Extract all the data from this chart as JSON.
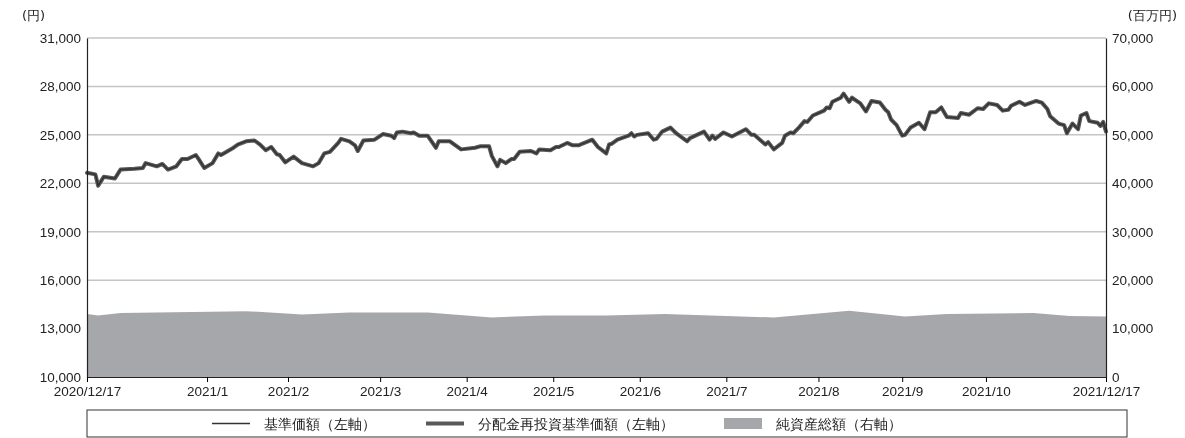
{
  "chart_data": {
    "type": "line",
    "ylabel": "(円)",
    "y2label": "(百万円)",
    "xlim": [
      "2020-12-17",
      "2021-12-17"
    ],
    "xticks": [
      {
        "value": "2020-12-17",
        "label": "2020/12/17"
      },
      {
        "value": "2021-01-29",
        "label": "2021/1"
      },
      {
        "value": "2021-02-27",
        "label": "2021/2"
      },
      {
        "value": "2021-04-01",
        "label": "2021/3"
      },
      {
        "value": "2021-05-02",
        "label": "2021/4"
      },
      {
        "value": "2021-06-02",
        "label": "2021/5"
      },
      {
        "value": "2021-07-03",
        "label": "2021/6"
      },
      {
        "value": "2021-08-03",
        "label": "2021/7"
      },
      {
        "value": "2021-09-05",
        "label": "2021/8"
      },
      {
        "value": "2021-10-05",
        "label": "2021/9"
      },
      {
        "value": "2021-11-04",
        "label": "2021/10"
      },
      {
        "value": "2021-12-17",
        "label": "2021/12/17"
      }
    ],
    "ylim": [
      10000,
      31000
    ],
    "yticks": [
      {
        "value": 10000,
        "label": "10,000"
      },
      {
        "value": 13000,
        "label": "13,000"
      },
      {
        "value": 16000,
        "label": "16,000"
      },
      {
        "value": 19000,
        "label": "19,000"
      },
      {
        "value": 22000,
        "label": "22,000"
      },
      {
        "value": 25000,
        "label": "25,000"
      },
      {
        "value": 28000,
        "label": "28,000"
      },
      {
        "value": 31000,
        "label": "31,000"
      }
    ],
    "y2lim": [
      0,
      70000
    ],
    "y2ticks": [
      0,
      {
        "value": 10000,
        "label": "10,000"
      },
      {
        "value": 20000,
        "label": "20,000"
      },
      {
        "value": 30000,
        "label": "30,000"
      },
      {
        "value": 40000,
        "label": "40,000"
      },
      {
        "value": 50000,
        "label": "50,000"
      },
      {
        "value": 60000,
        "label": "60,000"
      },
      {
        "value": 70000,
        "label": "70,000"
      }
    ],
    "grid": "y",
    "legend": "bottom",
    "x": [
      "2020-12-17",
      "2020-12-20",
      "2020-12-21",
      "2020-12-23",
      "2020-12-27",
      "2020-12-29",
      "2021-01-03",
      "2021-01-06",
      "2021-01-07",
      "2021-01-11",
      "2021-01-13",
      "2021-01-15",
      "2021-01-18",
      "2021-01-20",
      "2021-01-22",
      "2021-01-25",
      "2021-01-26",
      "2021-01-28",
      "2021-01-31",
      "2021-02-02",
      "2021-02-03",
      "2021-02-05",
      "2021-02-07",
      "2021-02-09",
      "2021-02-12",
      "2021-02-15",
      "2021-02-17",
      "2021-02-19",
      "2021-02-21",
      "2021-02-23",
      "2021-02-24",
      "2021-02-26",
      "2021-03-01",
      "2021-03-04",
      "2021-03-08",
      "2021-03-10",
      "2021-03-12",
      "2021-03-14",
      "2021-03-17",
      "2021-03-18",
      "2021-03-21",
      "2021-03-23",
      "2021-03-24",
      "2021-03-26",
      "2021-03-30",
      "2021-04-02",
      "2021-04-05",
      "2021-04-06",
      "2021-04-07",
      "2021-04-09",
      "2021-04-12",
      "2021-04-13",
      "2021-04-15",
      "2021-04-18",
      "2021-04-21",
      "2021-04-22",
      "2021-04-26",
      "2021-04-30",
      "2021-05-05",
      "2021-05-07",
      "2021-05-10",
      "2021-05-11",
      "2021-05-13",
      "2021-05-14",
      "2021-05-16",
      "2021-05-18",
      "2021-05-19",
      "2021-05-21",
      "2021-05-25",
      "2021-05-27",
      "2021-05-28",
      "2021-06-01",
      "2021-06-03",
      "2021-06-04",
      "2021-06-07",
      "2021-06-09",
      "2021-06-11",
      "2021-06-16",
      "2021-06-18",
      "2021-06-21",
      "2021-06-22",
      "2021-06-23",
      "2021-06-25",
      "2021-06-29",
      "2021-06-30",
      "2021-07-01",
      "2021-07-02",
      "2021-07-06",
      "2021-07-08",
      "2021-07-09",
      "2021-07-11",
      "2021-07-14",
      "2021-07-16",
      "2021-07-20",
      "2021-07-21",
      "2021-07-26",
      "2021-07-28",
      "2021-07-29",
      "2021-07-30",
      "2021-08-02",
      "2021-08-05",
      "2021-08-10",
      "2021-08-12",
      "2021-08-13",
      "2021-08-17",
      "2021-08-18",
      "2021-08-20",
      "2021-08-23",
      "2021-08-24",
      "2021-08-26",
      "2021-08-27",
      "2021-08-29",
      "2021-08-31",
      "2021-09-01",
      "2021-09-03",
      "2021-09-07",
      "2021-09-08",
      "2021-09-09",
      "2021-09-10",
      "2021-09-13",
      "2021-09-14",
      "2021-09-16",
      "2021-09-17",
      "2021-09-20",
      "2021-09-22",
      "2021-09-24",
      "2021-09-27",
      "2021-09-29",
      "2021-09-30",
      "2021-10-01",
      "2021-10-03",
      "2021-10-05",
      "2021-10-06",
      "2021-10-08",
      "2021-10-11",
      "2021-10-13",
      "2021-10-15",
      "2021-10-17",
      "2021-10-19",
      "2021-10-21",
      "2021-10-25",
      "2021-10-26",
      "2021-10-29",
      "2021-11-01",
      "2021-11-03",
      "2021-11-05",
      "2021-11-08",
      "2021-11-10",
      "2021-11-12",
      "2021-11-13",
      "2021-11-16",
      "2021-11-18",
      "2021-11-22",
      "2021-11-24",
      "2021-11-26",
      "2021-11-27",
      "2021-11-30",
      "2021-12-02",
      "2021-12-03",
      "2021-12-05",
      "2021-12-07",
      "2021-12-08",
      "2021-12-10",
      "2021-12-11",
      "2021-12-14",
      "2021-12-15",
      "2021-12-16",
      "2021-12-17"
    ],
    "series": [
      {
        "name": "基準価額（左軸）",
        "color": "#333333",
        "values": [
          22650,
          22550,
          21850,
          22400,
          22300,
          22850,
          22900,
          22950,
          23250,
          23050,
          23200,
          22850,
          23050,
          23500,
          23500,
          23750,
          23500,
          22950,
          23250,
          23850,
          23750,
          23950,
          24150,
          24400,
          24600,
          24650,
          24400,
          24050,
          24250,
          23800,
          23750,
          23300,
          23650,
          23250,
          23050,
          23250,
          23850,
          23950,
          24500,
          24750,
          24600,
          24350,
          24000,
          24650,
          24700,
          25050,
          24950,
          24800,
          25150,
          25200,
          25100,
          25150,
          24950,
          24950,
          24200,
          24600,
          24600,
          24100,
          24200,
          24300,
          24300,
          23700,
          23050,
          23450,
          23250,
          23500,
          23500,
          23950,
          24000,
          23850,
          24100,
          24050,
          24250,
          24250,
          24500,
          24350,
          24350,
          24700,
          24250,
          23850,
          24400,
          24450,
          24700,
          24950,
          25100,
          24900,
          25000,
          25100,
          24700,
          24750,
          25200,
          25450,
          25100,
          24600,
          24800,
          25200,
          24700,
          24950,
          24750,
          25150,
          24900,
          25350,
          25000,
          25000,
          24400,
          24550,
          24100,
          24500,
          24950,
          25150,
          25100,
          25450,
          25850,
          25800,
          26200,
          26500,
          26700,
          26650,
          27050,
          27300,
          27550,
          27050,
          27300,
          26950,
          26450,
          27100,
          27000,
          26550,
          26400,
          25950,
          25600,
          24950,
          25000,
          25450,
          25750,
          25350,
          26400,
          26400,
          26700,
          26100,
          26050,
          26350,
          26250,
          26650,
          26600,
          26950,
          26850,
          26500,
          26550,
          26800,
          27050,
          26850,
          27100,
          27000,
          26600,
          26150,
          25700,
          25600,
          25100,
          25700,
          25350,
          26200,
          26350,
          25850,
          25750,
          25550,
          25800,
          25200
        ]
      },
      {
        "name": "分配金再投資基準価額（左軸）",
        "color": "#595959",
        "values": [
          22650,
          22550,
          21850,
          22400,
          22300,
          22850,
          22900,
          22950,
          23250,
          23050,
          23200,
          22850,
          23050,
          23500,
          23500,
          23750,
          23500,
          22950,
          23250,
          23850,
          23750,
          23950,
          24150,
          24400,
          24600,
          24650,
          24400,
          24050,
          24250,
          23800,
          23750,
          23300,
          23650,
          23250,
          23050,
          23250,
          23850,
          23950,
          24500,
          24750,
          24600,
          24350,
          24000,
          24650,
          24700,
          25050,
          24950,
          24800,
          25150,
          25200,
          25100,
          25150,
          24950,
          24950,
          24200,
          24600,
          24600,
          24100,
          24200,
          24300,
          24300,
          23700,
          23050,
          23450,
          23250,
          23500,
          23500,
          23950,
          24000,
          23850,
          24100,
          24050,
          24250,
          24250,
          24500,
          24350,
          24350,
          24700,
          24250,
          23850,
          24400,
          24450,
          24700,
          24950,
          25100,
          24900,
          25000,
          25100,
          24700,
          24750,
          25200,
          25450,
          25100,
          24600,
          24800,
          25200,
          24700,
          24950,
          24750,
          25150,
          24900,
          25350,
          25000,
          25000,
          24400,
          24550,
          24100,
          24500,
          24950,
          25150,
          25100,
          25450,
          25850,
          25800,
          26200,
          26500,
          26700,
          26650,
          27050,
          27300,
          27550,
          27050,
          27300,
          26950,
          26450,
          27100,
          27000,
          26550,
          26400,
          25950,
          25600,
          24950,
          25000,
          25450,
          25750,
          25350,
          26400,
          26400,
          26700,
          26100,
          26050,
          26350,
          26250,
          26650,
          26600,
          26950,
          26850,
          26500,
          26550,
          26800,
          27050,
          26850,
          27100,
          27000,
          26600,
          26150,
          25700,
          25600,
          25100,
          25700,
          25350,
          26200,
          26350,
          25850,
          25750,
          25550,
          25800,
          25200
        ]
      },
      {
        "name": "純資産総額（右軸）",
        "type": "area",
        "axis": "y2",
        "color": "#a6a7aa",
        "x": [
          "2020-12-17",
          "2020-12-21",
          "2020-12-29",
          "2021-02-12",
          "2021-03-04",
          "2021-03-21",
          "2021-04-18",
          "2021-05-11",
          "2021-05-30",
          "2021-06-21",
          "2021-07-12",
          "2021-08-20",
          "2021-09-16",
          "2021-10-06",
          "2021-10-21",
          "2021-11-21",
          "2021-12-04",
          "2021-12-17"
        ],
        "values": [
          13000,
          12700,
          13200,
          13600,
          12900,
          13300,
          13300,
          12300,
          12700,
          12700,
          13000,
          12300,
          13700,
          12500,
          13000,
          13200,
          12600,
          12500
        ]
      }
    ]
  }
}
